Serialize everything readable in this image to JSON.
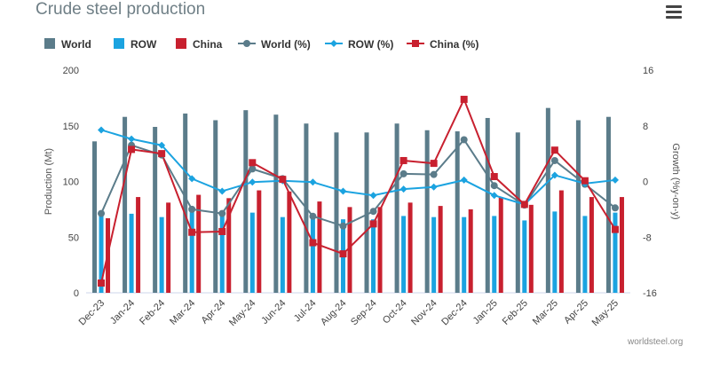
{
  "header": {
    "title": "Crude steel production",
    "menu_icon": "hamburger-menu-icon"
  },
  "footer": {
    "credit": "worldsteel.org"
  },
  "colors": {
    "world": "#5b7c8a",
    "row": "#1ba3e0",
    "china": "#c8202f"
  },
  "chart_data": {
    "type": "bar",
    "title": "Crude steel production",
    "categories": [
      "Dec-23",
      "Jan-24",
      "Feb-24",
      "Mar-24",
      "Apr-24",
      "May-24",
      "Jun-24",
      "Jul-24",
      "Aug-24",
      "Sep-24",
      "Oct-24",
      "Nov-24",
      "Dec-24",
      "Jan-25",
      "Feb-25",
      "Mar-25",
      "Apr-25",
      "May-25"
    ],
    "ylabel": "Production (Mt)",
    "y2label": "Growth (%y-on-y)",
    "ylim": [
      0,
      200
    ],
    "y2lim": [
      -16,
      16
    ],
    "yticks": [
      0,
      50,
      100,
      150,
      200
    ],
    "y2ticks": [
      -16,
      -8,
      0,
      8,
      16
    ],
    "legend_position": "top-left",
    "grid": false,
    "series": [
      {
        "name": "World",
        "type": "bar",
        "axis": "left",
        "color": "#5b7c8a",
        "values": [
          136,
          158,
          149,
          161,
          155,
          164,
          160,
          152,
          144,
          144,
          152,
          146,
          145,
          157,
          144,
          166,
          155,
          158
        ]
      },
      {
        "name": "ROW",
        "type": "bar",
        "axis": "left",
        "color": "#1ba3e0",
        "values": [
          69,
          71,
          68,
          73,
          70,
          72,
          68,
          70,
          66,
          66,
          69,
          68,
          68,
          69,
          65,
          73,
          69,
          72
        ]
      },
      {
        "name": "China",
        "type": "bar",
        "axis": "left",
        "color": "#c8202f",
        "values": [
          67,
          86,
          81,
          88,
          85,
          92,
          91,
          82,
          77,
          77,
          81,
          78,
          75,
          86,
          79,
          92,
          86,
          86
        ]
      },
      {
        "name": "World (%)",
        "type": "line",
        "axis": "right",
        "color": "#5b7c8a",
        "marker": "circle",
        "values": [
          -4.6,
          5.2,
          3.8,
          -4.0,
          -4.6,
          1.8,
          0.4,
          -5.0,
          -6.4,
          -4.3,
          1.1,
          1.0,
          6.0,
          -0.6,
          -3.4,
          3.0,
          -0.4,
          -3.8
        ]
      },
      {
        "name": "ROW (%)",
        "type": "line",
        "axis": "right",
        "color": "#1ba3e0",
        "marker": "diamond",
        "values": [
          7.4,
          6.1,
          5.2,
          0.4,
          -1.4,
          -0.1,
          0.1,
          -0.1,
          -1.4,
          -2.0,
          -1.1,
          -0.8,
          0.2,
          -2.0,
          -3.3,
          0.9,
          -0.3,
          0.2
        ]
      },
      {
        "name": "China (%)",
        "type": "line",
        "axis": "right",
        "color": "#c8202f",
        "marker": "square",
        "values": [
          -14.6,
          4.6,
          4.0,
          -7.3,
          -7.2,
          2.7,
          0.3,
          -8.8,
          -10.4,
          -6.1,
          3.0,
          2.6,
          11.8,
          0.7,
          -3.3,
          4.5,
          0.1,
          -6.9
        ]
      }
    ]
  }
}
